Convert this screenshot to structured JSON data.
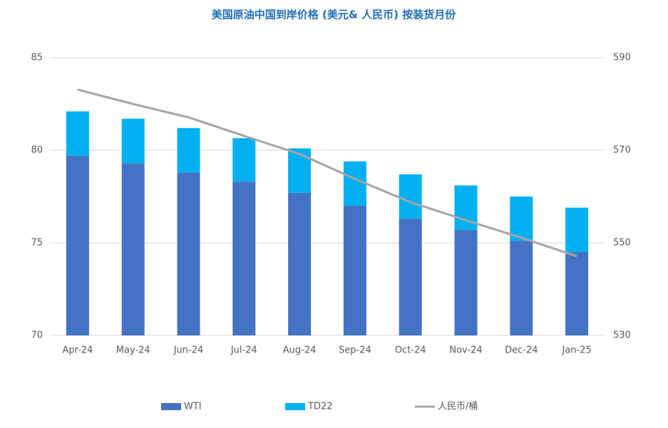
{
  "chart_data": {
    "type": "bar",
    "stacked": true,
    "title": "美国原油中国到岸价格 (美元& 人民币) 按装货月份",
    "categories": [
      "Apr-24",
      "May-24",
      "Jun-24",
      "Jul-24",
      "Aug-24",
      "Sep-24",
      "Oct-24",
      "Nov-24",
      "Dec-24",
      "Jan-25"
    ],
    "series": [
      {
        "name": "WTI",
        "type": "bar",
        "color": "#4472c4",
        "values": [
          79.7,
          79.3,
          78.8,
          78.3,
          77.7,
          77.0,
          76.3,
          75.7,
          75.1,
          74.5
        ]
      },
      {
        "name": "TD22",
        "type": "bar",
        "color": "#00b0f0",
        "values": [
          2.4,
          2.4,
          2.4,
          2.35,
          2.4,
          2.4,
          2.4,
          2.4,
          2.4,
          2.4
        ]
      },
      {
        "name": "人民币/桶",
        "type": "line",
        "axis": "y2",
        "color": "#a5a5a5",
        "values": [
          583.1,
          580.0,
          577.1,
          573.1,
          569.2,
          563.8,
          558.8,
          554.9,
          551.1,
          547.1
        ]
      }
    ],
    "ylim": [
      70,
      85
    ],
    "yticks": [
      70,
      75,
      80,
      85
    ],
    "y2lim": [
      530,
      590
    ],
    "y2ticks": [
      530,
      550,
      570,
      590
    ],
    "grid": true,
    "legend": "bottom"
  }
}
